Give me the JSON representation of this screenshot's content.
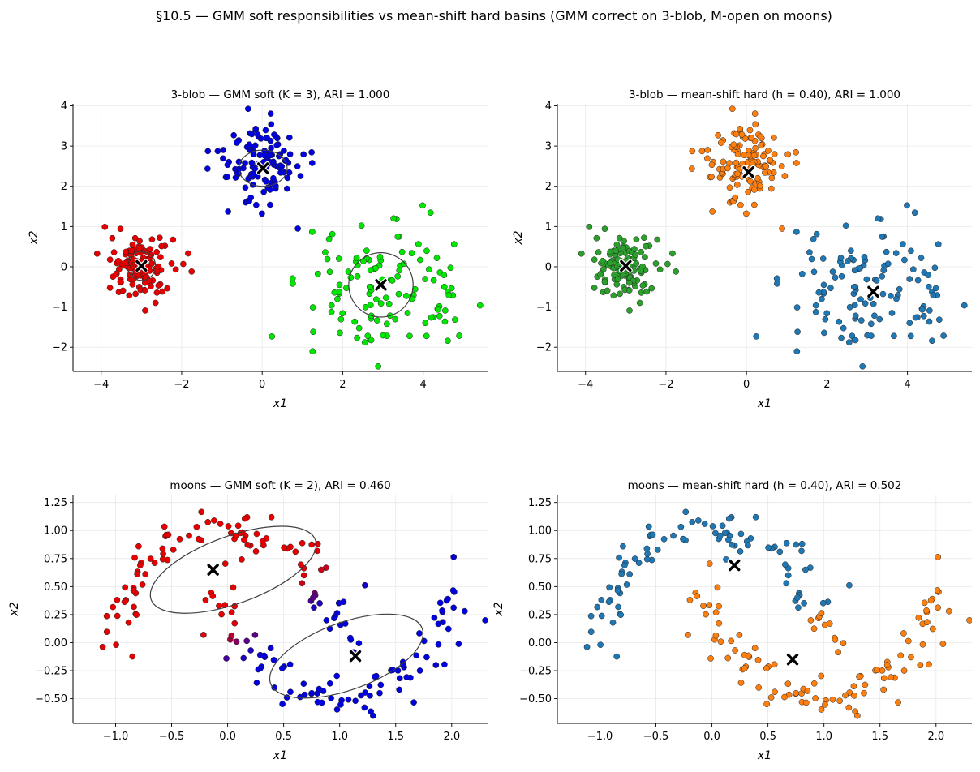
{
  "suptitle": "§10.5 — GMM soft responsibilities vs mean-shift hard basins (GMM correct on 3-blob, M-open on moons)",
  "chart_data": [
    {
      "type": "scatter",
      "title": "3-blob — GMM soft (K = 3), ARI = 1.000",
      "xlabel": "x1",
      "ylabel": "x2",
      "xlim": [
        -4.7,
        5.6
      ],
      "ylim": [
        -2.6,
        4.05
      ],
      "xticks": [
        -4,
        -2,
        0,
        2,
        4
      ],
      "xtick_labels": [
        "−4",
        "−2",
        "0",
        "2",
        "4"
      ],
      "yticks": [
        -2,
        -1,
        0,
        1,
        2,
        3,
        4
      ],
      "ytick_labels": [
        "−2",
        "−1",
        "0",
        "1",
        "2",
        "3",
        "4"
      ],
      "grid": true,
      "clusters": [
        {
          "color": "#e80000",
          "center": [
            -3.0,
            0.0
          ],
          "spread": [
            0.45,
            0.38
          ],
          "n": 120
        },
        {
          "color": "#0000e0",
          "center": [
            0.0,
            2.5
          ],
          "spread": [
            0.55,
            0.55
          ],
          "n": 120
        },
        {
          "color": "#00e600",
          "center": [
            3.0,
            -0.5
          ],
          "spread": [
            0.95,
            0.75
          ],
          "n": 120
        }
      ],
      "centers": [
        [
          -3.0,
          0.02
        ],
        [
          0.02,
          2.45
        ],
        [
          2.95,
          -0.45
        ]
      ],
      "ellipses": [
        {
          "cx": -3.0,
          "cy": 0.02,
          "rx": 0.35,
          "ry": 0.36,
          "angle": 0
        },
        {
          "cx": 0.02,
          "cy": 2.45,
          "rx": 0.6,
          "ry": 0.45,
          "angle": 0
        },
        {
          "cx": 2.95,
          "cy": -0.45,
          "rx": 0.8,
          "ry": 0.8,
          "angle": 0
        }
      ]
    },
    {
      "type": "scatter",
      "title": "3-blob — mean-shift hard (h = 0.40), ARI = 1.000",
      "xlabel": "x1",
      "ylabel": "x2",
      "xlim": [
        -4.7,
        5.6
      ],
      "ylim": [
        -2.6,
        4.05
      ],
      "xticks": [
        -4,
        -2,
        0,
        2,
        4
      ],
      "xtick_labels": [
        "−4",
        "−2",
        "0",
        "2",
        "4"
      ],
      "yticks": [
        -2,
        -1,
        0,
        1,
        2,
        3,
        4
      ],
      "ytick_labels": [
        "−2",
        "−1",
        "0",
        "1",
        "2",
        "3",
        "4"
      ],
      "grid": true,
      "clusters": [
        {
          "color": "#2ca02c",
          "center": [
            -3.0,
            0.0
          ],
          "spread": [
            0.45,
            0.38
          ],
          "n": 120
        },
        {
          "color": "#ff7f0e",
          "center": [
            0.0,
            2.5
          ],
          "spread": [
            0.55,
            0.55
          ],
          "n": 120
        },
        {
          "color": "#1f77b4",
          "center": [
            3.0,
            -0.5
          ],
          "spread": [
            0.95,
            0.75
          ],
          "n": 120
        }
      ],
      "centers": [
        [
          -3.0,
          0.02
        ],
        [
          0.05,
          2.35
        ],
        [
          3.15,
          -0.62
        ]
      ],
      "ellipses": []
    },
    {
      "type": "scatter",
      "title": "moons — GMM soft (K = 2), ARI = 0.460",
      "xlabel": "x1",
      "ylabel": "x2",
      "xlim": [
        -1.38,
        2.32
      ],
      "ylim": [
        -0.72,
        1.32
      ],
      "xticks": [
        -1.0,
        -0.5,
        0.0,
        0.5,
        1.0,
        1.5,
        2.0
      ],
      "xtick_labels": [
        "−1.0",
        "−0.5",
        "0.0",
        "0.5",
        "1.0",
        "1.5",
        "2.0"
      ],
      "yticks": [
        -0.5,
        -0.25,
        0.0,
        0.25,
        0.5,
        0.75,
        1.0,
        1.25
      ],
      "ytick_labels": [
        "−0.50",
        "−0.25",
        "0.00",
        "0.25",
        "0.50",
        "0.75",
        "1.00",
        "1.25"
      ],
      "grid": true,
      "moons": {
        "n": 100,
        "noise": 0.1
      },
      "coloring": "gmm",
      "centers": [
        [
          -0.13,
          0.65
        ],
        [
          1.14,
          -0.12
        ]
      ],
      "ellipses": [
        {
          "cx": 0.05,
          "cy": 0.65,
          "rx": 0.78,
          "ry": 0.3,
          "angle": 20
        },
        {
          "cx": 1.06,
          "cy": -0.12,
          "rx": 0.72,
          "ry": 0.3,
          "angle": 20
        }
      ]
    },
    {
      "type": "scatter",
      "title": "moons — mean-shift hard (h = 0.40), ARI = 0.502",
      "xlabel": "x1",
      "ylabel": "x2",
      "xlim": [
        -1.38,
        2.32
      ],
      "ylim": [
        -0.72,
        1.32
      ],
      "xticks": [
        -1.0,
        -0.5,
        0.0,
        0.5,
        1.0,
        1.5,
        2.0
      ],
      "xtick_labels": [
        "−1.0",
        "−0.5",
        "0.0",
        "0.5",
        "1.0",
        "1.5",
        "2.0"
      ],
      "yticks": [
        -0.5,
        -0.25,
        0.0,
        0.25,
        0.5,
        0.75,
        1.0,
        1.25
      ],
      "ytick_labels": [
        "−0.50",
        "−0.25",
        "0.00",
        "0.25",
        "0.50",
        "0.75",
        "1.00",
        "1.25"
      ],
      "grid": true,
      "moons": {
        "n": 100,
        "noise": 0.1
      },
      "coloring": "meanshift",
      "palette": [
        "#1f77b4",
        "#ff7f0e"
      ],
      "centers": [
        [
          0.2,
          0.69
        ],
        [
          0.72,
          -0.15
        ]
      ],
      "ellipses": []
    }
  ]
}
